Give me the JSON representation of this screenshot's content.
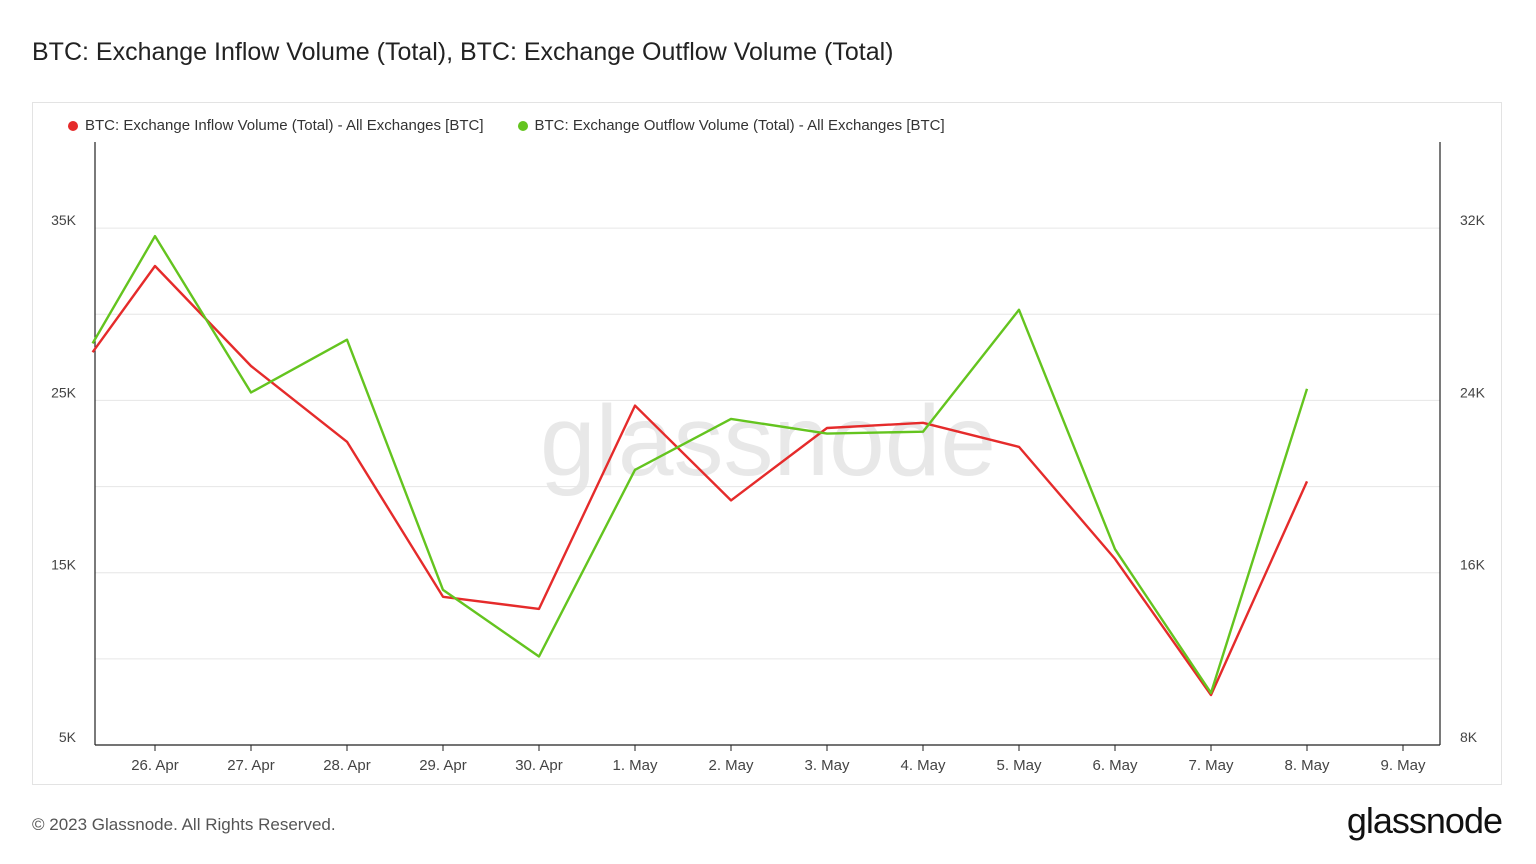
{
  "page": {
    "title": "BTC: Exchange Inflow Volume (Total), BTC: Exchange Outflow Volume (Total)",
    "footer": "© 2023 Glassnode. All Rights Reserved.",
    "brand": "glassnode",
    "watermark": "glassnode"
  },
  "chart_data": {
    "type": "line",
    "title": "BTC: Exchange Inflow Volume (Total), BTC: Exchange Outflow Volume (Total)",
    "categories": [
      "26. Apr",
      "27. Apr",
      "28. Apr",
      "29. Apr",
      "30. Apr",
      "1. May",
      "2. May",
      "3. May",
      "4. May",
      "5. May",
      "6. May",
      "7. May",
      "8. May",
      "9. May"
    ],
    "x": [
      -0.65,
      0,
      1,
      2,
      3,
      4,
      5,
      6,
      7,
      8,
      9,
      10,
      11,
      12
    ],
    "series": [
      {
        "name": "BTC: Exchange Inflow Volume (Total) - All Exchanges [BTC]",
        "axis": "left",
        "color": "#e52b2b",
        "values": [
          27800,
          32800,
          27000,
          22600,
          13600,
          12900,
          24700,
          19200,
          23400,
          23700,
          22300,
          15800,
          7900,
          20300
        ]
      },
      {
        "name": "BTC: Exchange Outflow Volume (Total) - All Exchanges [BTC]",
        "axis": "right",
        "color": "#64c41f",
        "values": [
          26650,
          31630,
          24370,
          26820,
          15200,
          12110,
          20780,
          23140,
          22460,
          22550,
          28210,
          17090,
          10420,
          24540
        ]
      }
    ],
    "y_left": {
      "ticks": [
        "5K",
        "15K",
        "25K",
        "35K"
      ],
      "tick_values": [
        5000,
        15000,
        25000,
        35000
      ],
      "range": [
        5000,
        40000
      ]
    },
    "y_right": {
      "ticks": [
        "8K",
        "16K",
        "24K",
        "32K"
      ],
      "tick_values": [
        8000,
        16000,
        24000,
        32000
      ],
      "range": [
        8000,
        36000
      ]
    },
    "grid": true,
    "legend_position": "top-left"
  }
}
